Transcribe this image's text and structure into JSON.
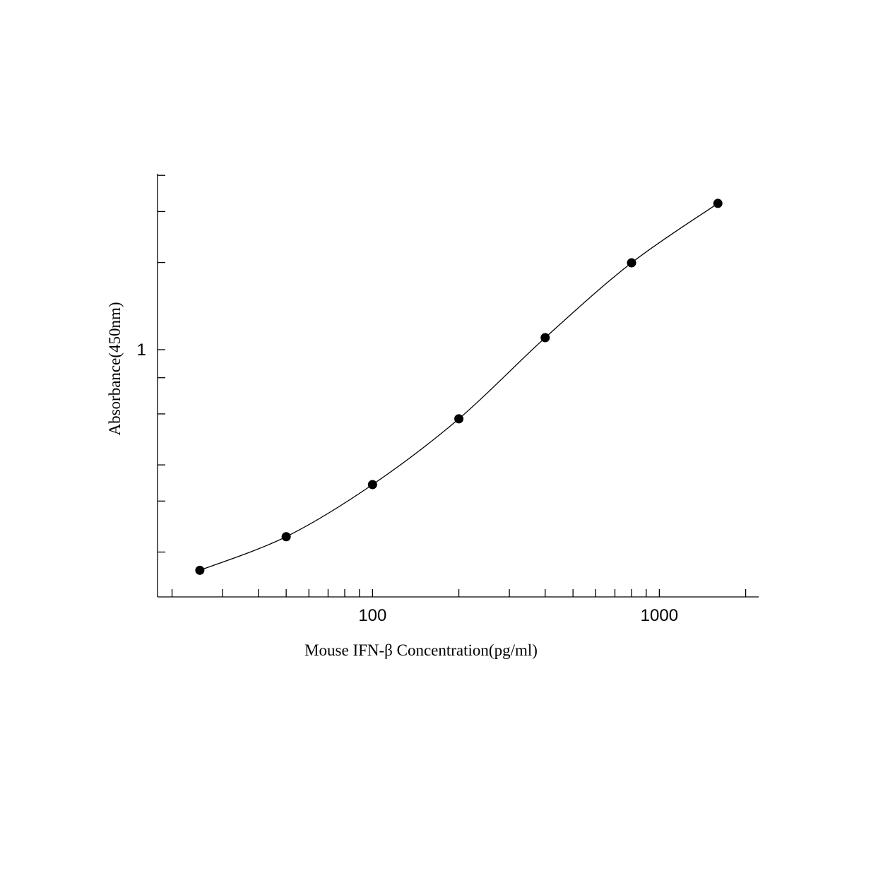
{
  "chart_data": {
    "type": "scatter",
    "x_label": "Mouse IFN-β Concentration(pg/ml)",
    "y_label": "Absorbance(450nm)",
    "x": [
      25,
      50,
      100,
      200,
      400,
      800,
      1600
    ],
    "values": [
      0.173,
      0.226,
      0.342,
      0.577,
      1.1,
      1.995,
      3.2
    ],
    "color": "#000000",
    "curve": true,
    "xlog": true,
    "ylog": true,
    "xlim": [
      17.8,
      2220
    ],
    "ylim": [
      0.14,
      4.05
    ],
    "xticks": [
      100,
      1000
    ],
    "xminor_ticks": [
      20,
      30,
      40,
      50,
      60,
      70,
      80,
      90,
      200,
      300,
      400,
      500,
      600,
      700,
      800,
      900,
      2000
    ],
    "yticks": [
      1
    ],
    "yminor_ticks": [
      0.2,
      0.3,
      0.4,
      0.6,
      0.8,
      2,
      3,
      4
    ]
  }
}
